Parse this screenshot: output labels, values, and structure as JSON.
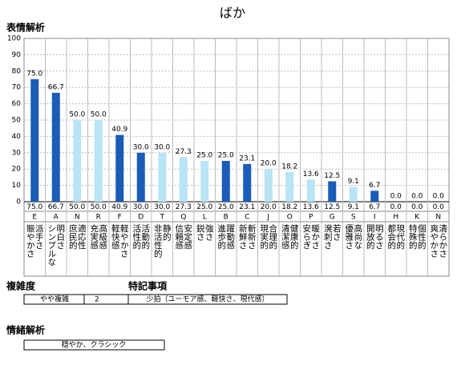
{
  "chart_data": {
    "type": "bar",
    "title": "ばか",
    "subtitle": "表情解析",
    "categories": [
      "E",
      "A",
      "N",
      "R",
      "F",
      "D",
      "T",
      "Q",
      "L",
      "B",
      "C",
      "J",
      "O",
      "P",
      "G",
      "S",
      "I",
      "H",
      "K",
      "N"
    ],
    "labels": [
      [
        "派手さ",
        "賑やかさ"
      ],
      [
        "明白さ",
        "シンプルな"
      ],
      [
        "適応性",
        "庶民的"
      ],
      [
        "高級感",
        "充実感"
      ],
      [
        "軽やかさ",
        "軽快感"
      ],
      [
        "活動的",
        "活性的"
      ],
      [
        "静的",
        "非活性的"
      ],
      [
        "安定感",
        "信頼感"
      ],
      [
        "強さ",
        "鋭さ"
      ],
      [
        "躍動感",
        "進歩的"
      ],
      [
        "斬新さ",
        "新鮮さ"
      ],
      [
        "合理的",
        "現実的"
      ],
      [
        "健康的",
        "清潔感"
      ],
      [
        "暖かさ",
        "安らぎ"
      ],
      [
        "若さ",
        "溌刺さ"
      ],
      [
        "高尚な",
        "優雅さ"
      ],
      [
        "明るさ",
        "開放的"
      ],
      [
        "現代的",
        "都会的"
      ],
      [
        "個性的",
        "特殊的"
      ],
      [
        "清らかさ",
        "爽やかさ"
      ]
    ],
    "values": [
      75,
      66.7,
      50,
      50,
      40.9,
      30,
      30,
      27.3,
      25,
      25,
      23.1,
      20,
      18.2,
      13.6,
      12.5,
      9.1,
      6.7,
      0,
      0,
      0
    ],
    "value_labels": [
      "75.0",
      "66.7",
      "50.0",
      "50.0",
      "40.9",
      "30.0",
      "30.0",
      "27.3",
      "25.0",
      "25.0",
      "23.1",
      "20.0",
      "18.2",
      "13.6",
      "12.5",
      "9.1",
      "6.7",
      "0.0",
      "0.0",
      "0.0"
    ],
    "colors": [
      "#1a5cb8",
      "#1a5cb8",
      "#b8e4f6",
      "#b8e4f6",
      "#1a5cb8",
      "#1a5cb8",
      "#b8e4f6",
      "#b8e4f6",
      "#b8e4f6",
      "#1a5cb8",
      "#1a5cb8",
      "#b8e4f6",
      "#b8e4f6",
      "#b8e4f6",
      "#1a5cb8",
      "#b8e4f6",
      "#1a5cb8",
      "#b8e4f6",
      "#b8e4f6",
      "#b8e4f6"
    ],
    "ylim": [
      0,
      100
    ],
    "yticks": [
      0,
      10,
      20,
      30,
      40,
      50,
      60,
      70,
      80,
      90,
      100
    ],
    "grid": true
  },
  "complexity": {
    "heading": "複雑度",
    "label": "やや複雑",
    "value": 2
  },
  "notes": {
    "heading": "特記事項",
    "text": "少拍（ユーモア感、軽快さ、現代感）"
  },
  "emotion": {
    "heading": "情緒解析",
    "text": "穏やか、クラシック"
  }
}
